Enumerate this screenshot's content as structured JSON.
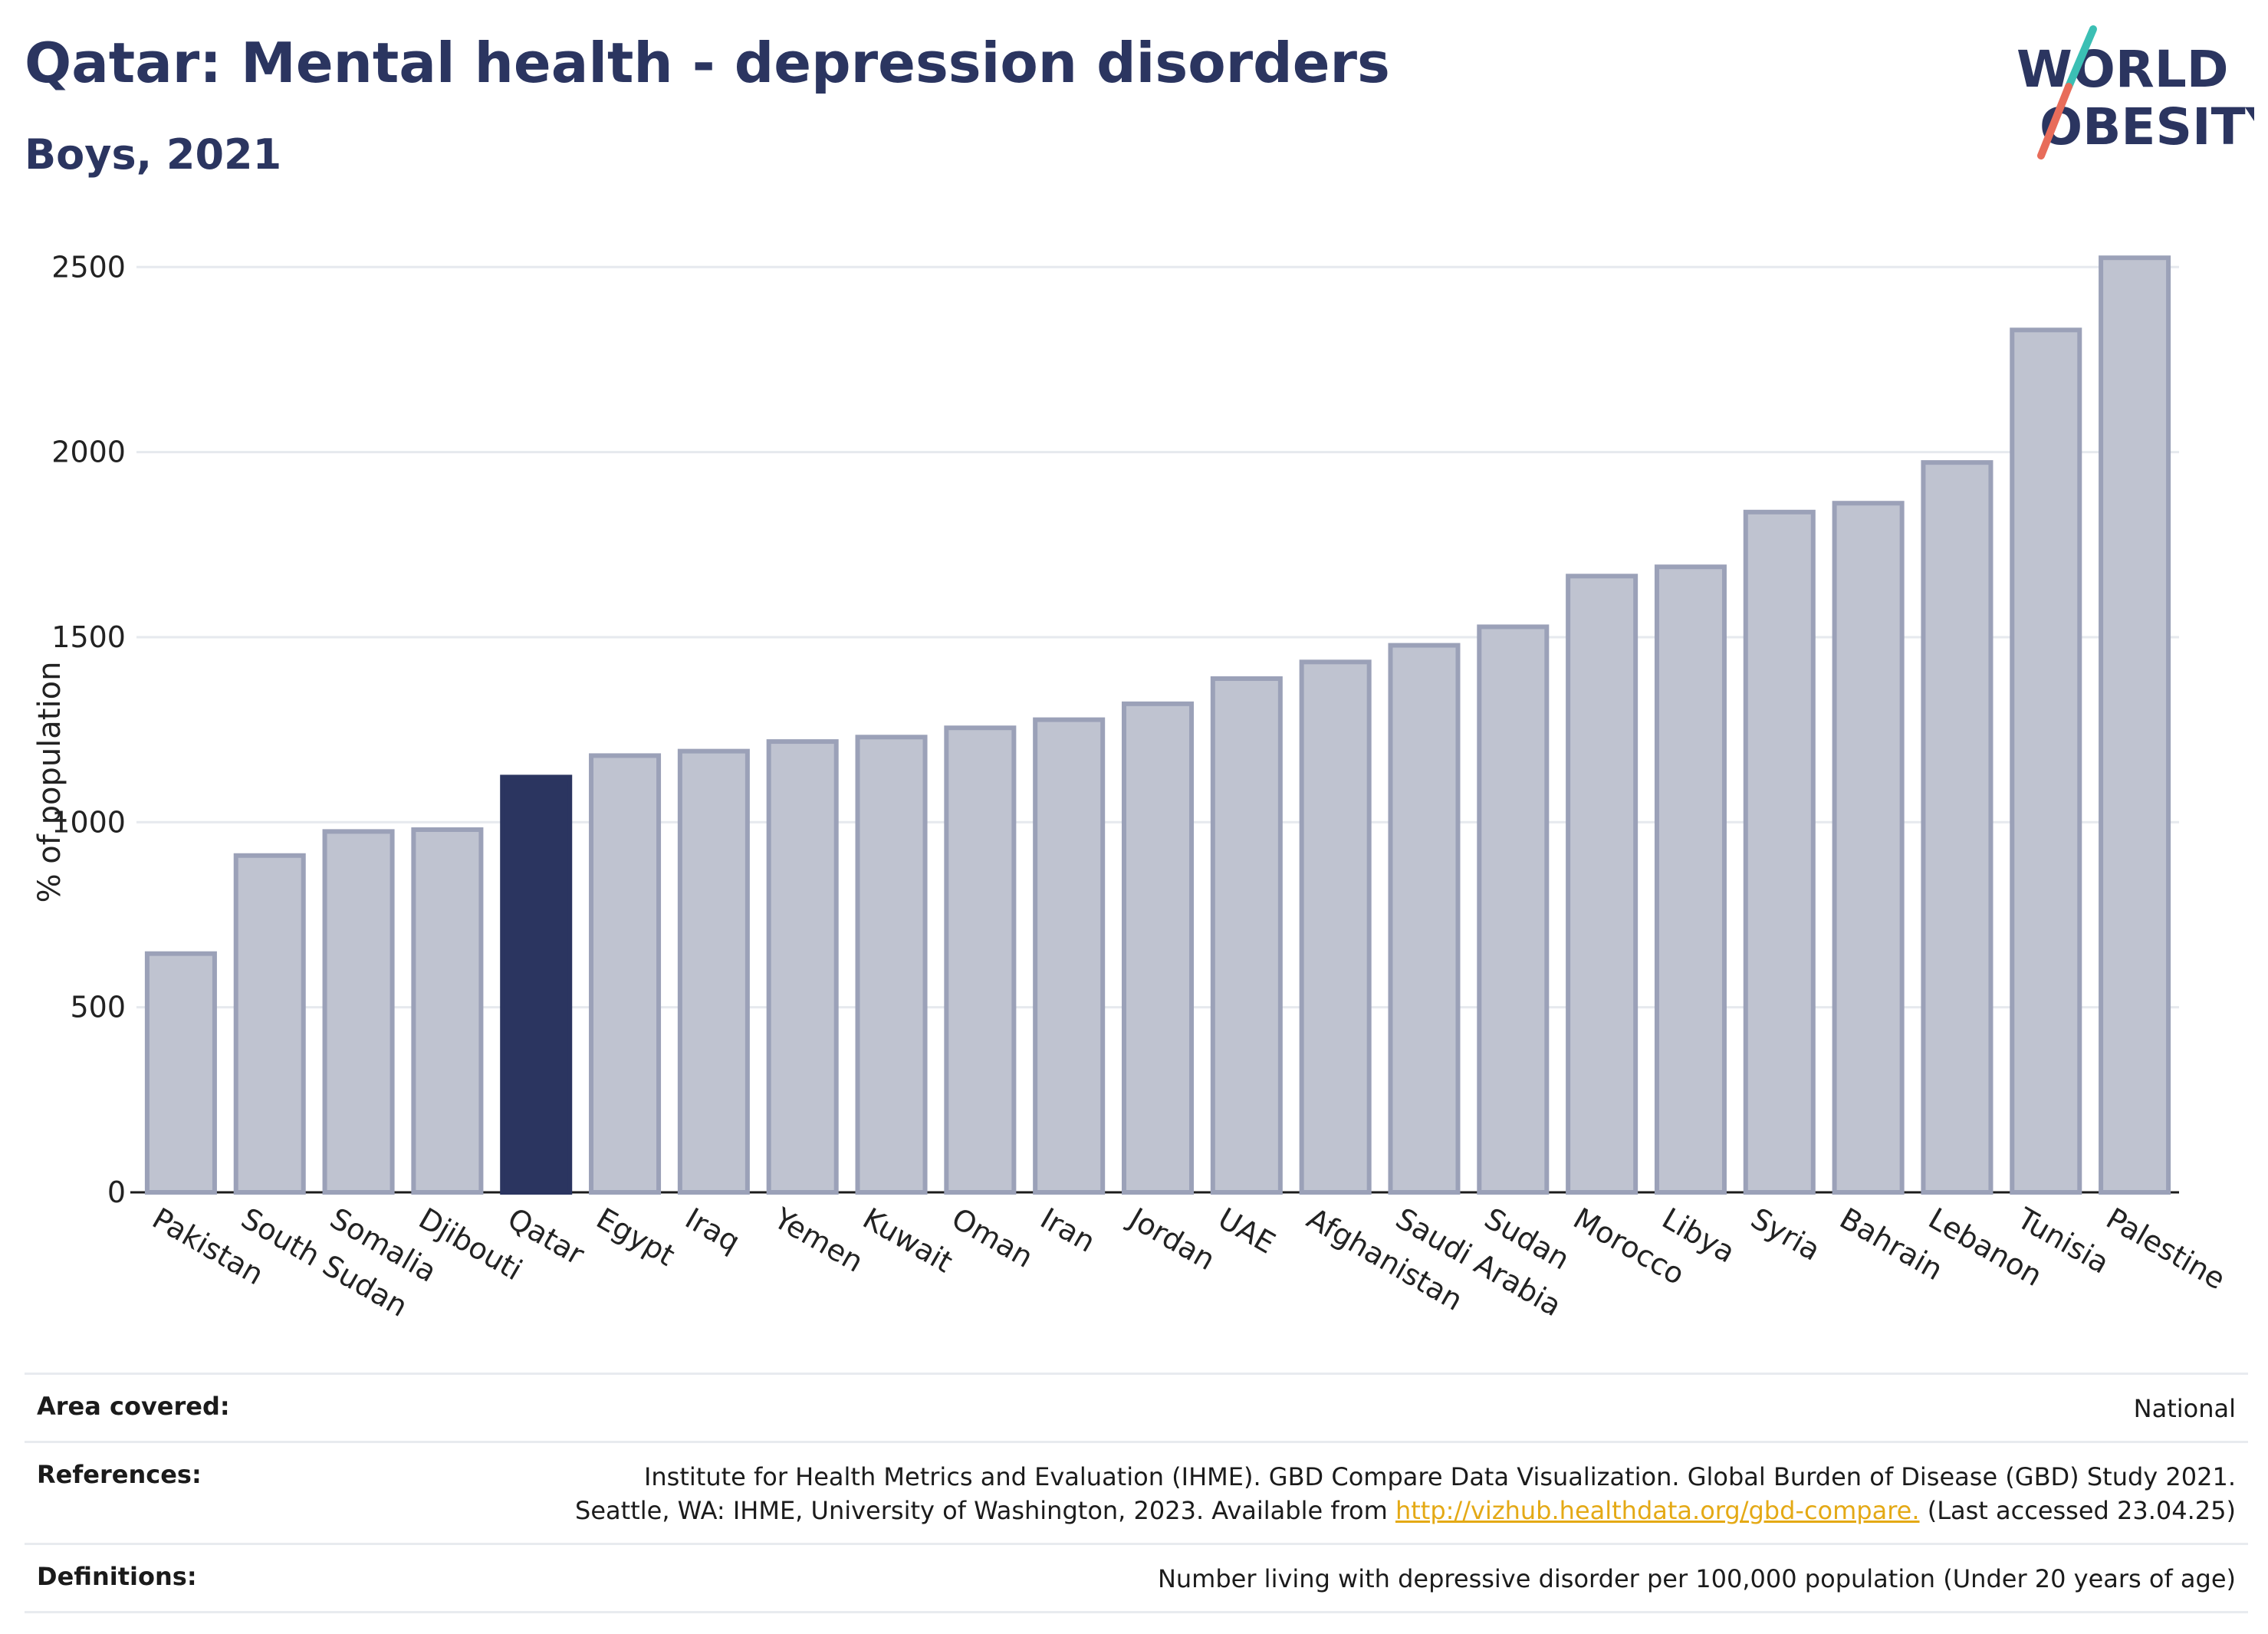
{
  "title": "Qatar: Mental health - depression disorders",
  "subtitle": "Boys, 2021",
  "logo": {
    "line1": "WORLD",
    "line2": "OBESITY"
  },
  "colors": {
    "highlight": "#2b3560",
    "bar_fill": "#bfc3d0",
    "bar_stroke": "#9ba1b8",
    "logo_teal": "#3bbfb4",
    "logo_coral": "#e86c5a",
    "link": "#e4a915"
  },
  "chart_data": {
    "type": "bar",
    "title": "Qatar: Mental health - depression disorders",
    "subtitle": "Boys, 2021",
    "xlabel": "",
    "ylabel": "% of population",
    "ylim": [
      0,
      2600
    ],
    "yticks": [
      0,
      500,
      1000,
      1500,
      2000,
      2500
    ],
    "grid": true,
    "highlight": "Qatar",
    "categories": [
      "Pakistan",
      "South Sudan",
      "Somalia",
      "Djibouti",
      "Qatar",
      "Egypt",
      "Iraq",
      "Yemen",
      "Kuwait",
      "Oman",
      "Iran",
      "Jordan",
      "UAE",
      "Afghanistan",
      "Saudi Arabia",
      "Sudan",
      "Morocco",
      "Libya",
      "Syria",
      "Bahrain",
      "Lebanon",
      "Tunisia",
      "Palestine"
    ],
    "values": [
      645,
      910,
      975,
      980,
      1122,
      1180,
      1192,
      1218,
      1230,
      1255,
      1277,
      1320,
      1388,
      1433,
      1478,
      1528,
      1665,
      1690,
      1838,
      1862,
      1972,
      2330,
      2525
    ]
  },
  "info": [
    {
      "key": "Area covered:",
      "lines": [
        "National"
      ]
    },
    {
      "key": "References:",
      "lines": [
        "Institute for Health Metrics and Evaluation (IHME). GBD Compare Data Visualization. Global Burden of Disease (GBD) Study 2021."
      ],
      "line2_prefix": "Seattle, WA: IHME, University of Washington, 2023. Available from ",
      "link": "http://vizhub.healthdata.org/gbd-compare.",
      "line2_suffix": " (Last accessed 23.04.25)"
    },
    {
      "key": "Definitions:",
      "lines": [
        "Number living with depressive disorder per 100,000 population (Under 20 years of age)"
      ]
    }
  ]
}
